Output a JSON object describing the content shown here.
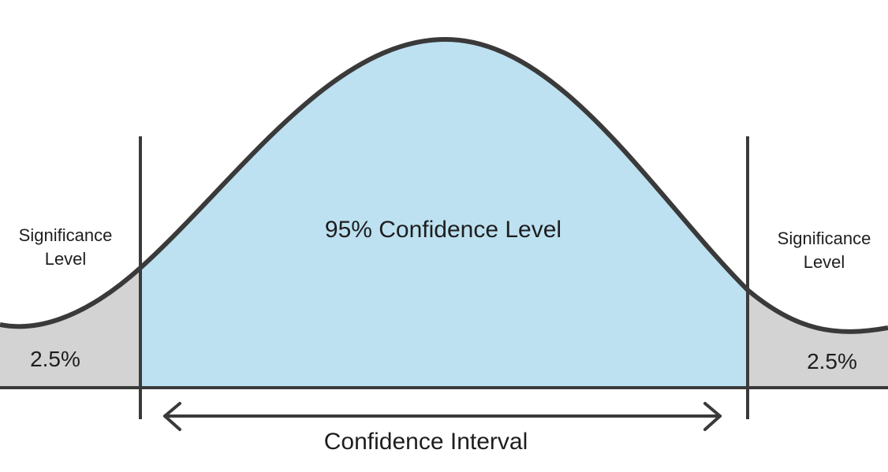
{
  "labels": {
    "center": "95% Confidence Level",
    "interval": "Confidence Interval",
    "left_tail_title": [
      "Significance",
      "Level"
    ],
    "right_tail_title": [
      "Significance",
      "Level"
    ],
    "left_tail_value": "2.5%",
    "right_tail_value": "2.5%"
  },
  "colors": {
    "confidence_fill": "#bde1f1",
    "tail_fill": "#d3d3d3",
    "stroke": "#3a3a3a"
  }
}
